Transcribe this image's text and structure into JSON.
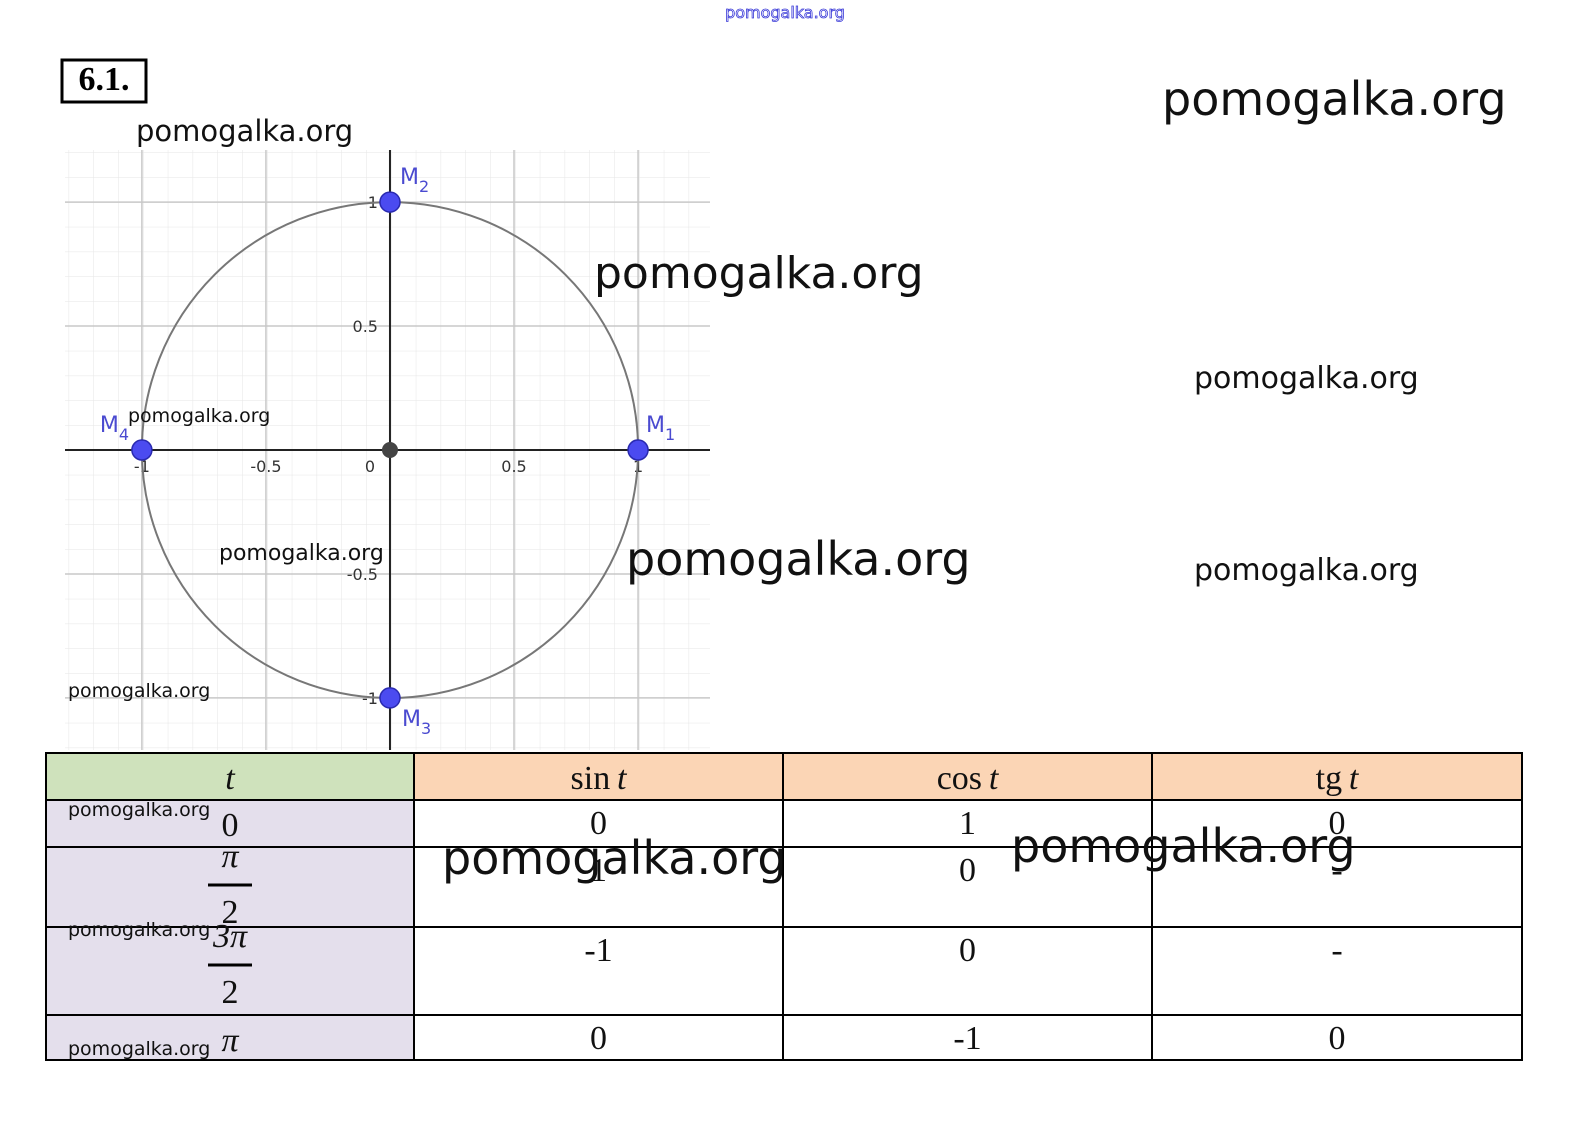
{
  "problem": "6.1.",
  "watermarks": [
    "pomogalka.org",
    "pomogalka.org",
    "pomogalka.org",
    "pomogalka.org",
    "pomogalka.org",
    "pomogalka.org",
    "pomogalka.org",
    "pomogalka.org",
    "pomogalka.org",
    "pomogalka.org",
    "pomogalka.org",
    "pomogalka.org",
    "pomogalka.org",
    "pomogalka.org",
    "pomogalka.org"
  ],
  "diagram": {
    "xlim": [
      -1.31,
      1.29
    ],
    "ylim": [
      -1.21,
      1.21
    ],
    "xticks": [
      -1,
      -0.5,
      0,
      0.5,
      1
    ],
    "yticks": [
      -1,
      -0.5,
      0.5,
      1
    ],
    "points": [
      {
        "label": "M",
        "index": "1",
        "x": 1,
        "y": 0
      },
      {
        "label": "M",
        "index": "2",
        "x": 0,
        "y": 1
      },
      {
        "label": "M",
        "index": "3",
        "x": 0,
        "y": -1
      },
      {
        "label": "M",
        "index": "4",
        "x": -1,
        "y": 0
      }
    ]
  },
  "table": {
    "header": [
      {
        "fn": "",
        "var": "t"
      },
      {
        "fn": "sin",
        "var": "t"
      },
      {
        "fn": "cos",
        "var": "t"
      },
      {
        "fn": "tg",
        "var": "t"
      }
    ],
    "rows": [
      {
        "t": {
          "num": "0"
        },
        "cells": [
          "0",
          "1",
          "0"
        ]
      },
      {
        "t": {
          "num": "π",
          "den": "2"
        },
        "cells": [
          "1",
          "0",
          "-"
        ]
      },
      {
        "t": {
          "num": "3π",
          "den": "2"
        },
        "cells": [
          "-1",
          "0",
          "-"
        ]
      },
      {
        "t": {
          "num": "π"
        },
        "cells": [
          "0",
          "-1",
          "0"
        ]
      }
    ]
  }
}
